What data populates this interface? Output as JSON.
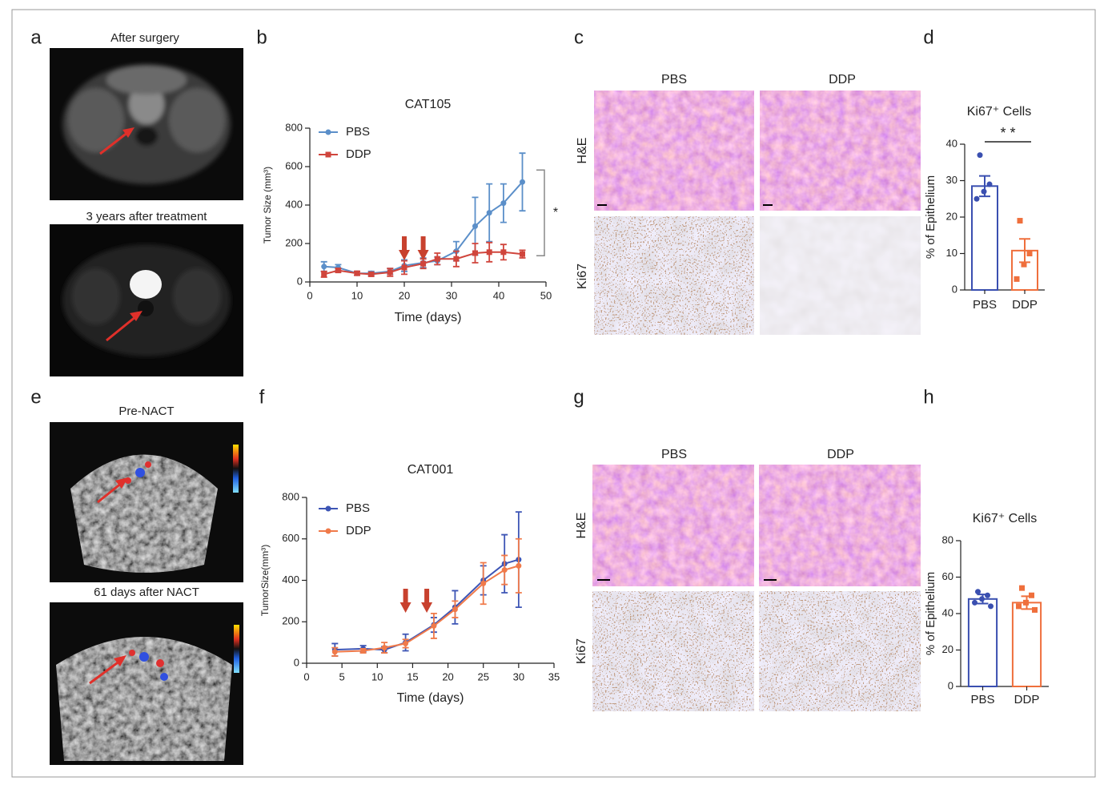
{
  "panel_labels": [
    "a",
    "b",
    "c",
    "d",
    "e",
    "f",
    "g",
    "h"
  ],
  "imaging": {
    "a": [
      "After surgery",
      "3 years after treatment"
    ],
    "e": [
      "Pre-NACT",
      "61 days after NACT"
    ]
  },
  "histology": {
    "c": {
      "columns": [
        "PBS",
        "DDP"
      ],
      "rows": [
        "H&E",
        "Ki67"
      ]
    },
    "g": {
      "columns": [
        "PBS",
        "DDP"
      ],
      "rows": [
        "H&E",
        "Ki67"
      ]
    }
  },
  "chart_data": [
    {
      "type": "line",
      "title": "CAT105",
      "x_label": "Time (days)",
      "y_label": "Tumor Size (mm³)",
      "x": [
        3,
        6,
        10,
        13,
        17,
        20,
        24,
        27,
        31,
        35,
        38,
        41,
        45
      ],
      "series": [
        {
          "name": "PBS",
          "color": "#5b8fc9",
          "marker": "circle",
          "values": [
            80,
            75,
            45,
            45,
            55,
            85,
            100,
            110,
            160,
            290,
            360,
            410,
            520
          ],
          "errors": [
            25,
            15,
            10,
            10,
            15,
            30,
            25,
            20,
            50,
            150,
            150,
            100,
            150
          ]
        },
        {
          "name": "DDP",
          "color": "#d0453c",
          "marker": "square",
          "values": [
            40,
            60,
            45,
            40,
            50,
            75,
            95,
            120,
            120,
            150,
            155,
            155,
            145
          ],
          "errors": [
            15,
            10,
            10,
            10,
            20,
            35,
            25,
            30,
            40,
            50,
            50,
            40,
            20
          ]
        }
      ],
      "arrows": [
        20,
        24
      ],
      "arrow_color": "#c8412e",
      "significance": "*",
      "xlim": [
        0,
        50
      ],
      "xticks": [
        0,
        10,
        20,
        30,
        40,
        50
      ],
      "ylim": [
        0,
        800
      ],
      "yticks": [
        0,
        200,
        400,
        600,
        800
      ],
      "legend": "top-left"
    },
    {
      "type": "bar",
      "title": "Ki67⁺ Cells",
      "y_label": "% of Epithelium",
      "categories": [
        "PBS",
        "DDP"
      ],
      "values": [
        28.5,
        10.8
      ],
      "errors": [
        2.8,
        3.2
      ],
      "points": [
        [
          37,
          29,
          27,
          25
        ],
        [
          19,
          10,
          7,
          3
        ]
      ],
      "colors": [
        "#3a4fb0",
        "#ef6f3c"
      ],
      "significance": "* *",
      "ylim": [
        0,
        40
      ],
      "yticks": [
        0,
        10,
        20,
        30,
        40
      ]
    },
    {
      "type": "line",
      "title": "CAT001",
      "x_label": "Time (days)",
      "y_label": "TumorSize(mm³)",
      "x": [
        4,
        8,
        11,
        14,
        18,
        21,
        25,
        28,
        30
      ],
      "series": [
        {
          "name": "PBS",
          "color": "#3d55b5",
          "marker": "circle",
          "values": [
            65,
            70,
            65,
            100,
            185,
            270,
            400,
            480,
            500
          ],
          "errors": [
            30,
            15,
            15,
            40,
            35,
            80,
            70,
            140,
            230
          ]
        },
        {
          "name": "DDP",
          "color": "#f07a4a",
          "marker": "circle",
          "values": [
            55,
            60,
            75,
            95,
            180,
            260,
            385,
            450,
            470
          ],
          "errors": [
            20,
            10,
            25,
            20,
            60,
            40,
            100,
            70,
            130
          ]
        }
      ],
      "arrows": [
        14,
        17
      ],
      "arrow_color": "#c8412e",
      "xlim": [
        0,
        35
      ],
      "xticks": [
        0,
        5,
        10,
        15,
        20,
        25,
        30,
        35
      ],
      "ylim": [
        0,
        800
      ],
      "yticks": [
        0,
        200,
        400,
        600,
        800
      ],
      "legend": "top-left"
    },
    {
      "type": "bar",
      "title": "Ki67⁺ Cells",
      "y_label": "% of Epithelium",
      "categories": [
        "PBS",
        "DDP"
      ],
      "values": [
        48,
        46
      ],
      "errors": [
        2.5,
        3.5
      ],
      "points": [
        [
          52,
          50,
          48,
          46,
          44
        ],
        [
          54,
          50,
          46,
          44,
          42
        ]
      ],
      "colors": [
        "#3a4fb0",
        "#ef6f3c"
      ],
      "ylim": [
        0,
        80
      ],
      "yticks": [
        0,
        20,
        40,
        60,
        80
      ]
    }
  ]
}
